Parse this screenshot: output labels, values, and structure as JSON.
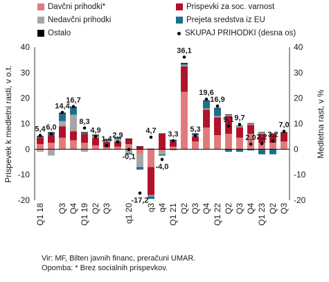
{
  "chart_data": {
    "type": "bar",
    "stacked": true,
    "ylabel_left": "Prispevek k medletni rasti, v o.t.",
    "ylabel_right": "Medletna rast, v %",
    "ylim": [
      -20,
      40
    ],
    "yticks": [
      -20,
      -10,
      0,
      10,
      20,
      30,
      40
    ],
    "categories": [
      "Q1 18",
      "Q2",
      "Q3",
      "Q4",
      "Q1 19",
      "Q2",
      "Q3",
      "Q4",
      "q1 20",
      "q2",
      "q3",
      "q4",
      "Q1 21",
      "Q2",
      "Q3",
      "Q4",
      "Q1 22",
      "Q2",
      "Q3",
      "Q4",
      "Q1 23",
      "Q2",
      "Q3"
    ],
    "tick_labels": [
      "Q1 18",
      "Q3",
      "Q1 19",
      "Q3",
      "q1 20",
      "q3",
      "Q1 21",
      "Q3",
      "Q1 22",
      "Q3",
      "Q1 23",
      "Q3"
    ],
    "tick_label_positions": [
      0,
      2,
      4,
      6,
      8,
      10,
      12,
      14,
      16,
      18,
      20,
      22
    ],
    "tick_labels_odd": [
      "Q4",
      "Q2",
      "q4",
      "Q2",
      "Q4",
      "Q2",
      "Q4",
      "Q2"
    ],
    "tick_label_odd_positions": [
      3,
      5,
      11,
      13,
      15,
      17,
      19,
      21
    ],
    "series": [
      {
        "name": "Davčni prihodki*",
        "color": "#e07b7b",
        "values": [
          2.0,
          2.5,
          4.5,
          3.5,
          2.5,
          1.5,
          0.8,
          1.0,
          2.0,
          -2.0,
          -7.0,
          -1.0,
          1.0,
          22.5,
          3.0,
          8.5,
          5.5,
          6.0,
          4.5,
          6.0,
          2.5,
          2.5,
          3.0
        ]
      },
      {
        "name": "Prispevki za soc. varnost",
        "color": "#b0122a",
        "values": [
          2.5,
          3.0,
          4.5,
          3.5,
          3.5,
          3.0,
          2.0,
          2.0,
          2.0,
          1.0,
          -11.0,
          6.0,
          2.0,
          10.0,
          2.0,
          7.0,
          7.0,
          7.0,
          4.0,
          3.5,
          3.5,
          3.5,
          3.5
        ]
      },
      {
        "name": "Nedavčni prihodki",
        "color": "#a6a6a6",
        "values": [
          -1.0,
          -2.5,
          2.0,
          6.5,
          -1.0,
          0.5,
          0.5,
          1.0,
          -1.5,
          -5.0,
          -0.5,
          -1.0,
          -0.5,
          0.5,
          0.5,
          0.5,
          0.5,
          0.5,
          0.5,
          0.5,
          0.5,
          0.0,
          0.0
        ]
      },
      {
        "name": "Prejeta sredstva iz EU",
        "color": "#1d6f8c",
        "values": [
          0.5,
          1.0,
          3.0,
          3.0,
          0.5,
          0.5,
          0.5,
          0.5,
          -0.5,
          -1.0,
          -1.0,
          -0.5,
          0.5,
          0.5,
          0.5,
          3.0,
          3.0,
          -1.0,
          -1.0,
          -0.5,
          -2.0,
          -2.0,
          0.0
        ]
      },
      {
        "name": "Ostalo",
        "color": "#000000",
        "values": [
          0.2,
          0.2,
          0.3,
          0.2,
          0.2,
          0.2,
          0.2,
          0.2,
          0.2,
          0.2,
          0.2,
          0.2,
          0.2,
          0.3,
          0.2,
          0.2,
          0.2,
          0.2,
          0.2,
          0.2,
          0.2,
          0.2,
          0.2
        ]
      }
    ],
    "total": {
      "name": "SKUPAJ PRIHODKI (desna os)",
      "values": [
        5.4,
        6.0,
        14.4,
        16.7,
        8.3,
        4.9,
        1.4,
        2.9,
        -0.1,
        -17.2,
        4.7,
        -4.0,
        3.3,
        36.1,
        5.3,
        19.6,
        16.9,
        9.1,
        9.7,
        2.0,
        2.2,
        3.2,
        7.0
      ],
      "labels": [
        "5,4",
        "6,0",
        "14,4",
        "16,7",
        "8,3",
        "4,9",
        "1,4",
        "2,9",
        "-0,1",
        "-17,2",
        "4,7",
        "-4,0",
        "3,3",
        "36,1",
        "5,3",
        "19,6",
        "16,9",
        "9,1",
        "9,7",
        "2,0",
        "2,2",
        "3,2",
        "7,0"
      ]
    },
    "legend_position": "top"
  },
  "notes": [
    "Vir: MF, Bilten javnih financ, preračuni UMAR.",
    "Opomba: * Brez socialnih prispevkov."
  ]
}
